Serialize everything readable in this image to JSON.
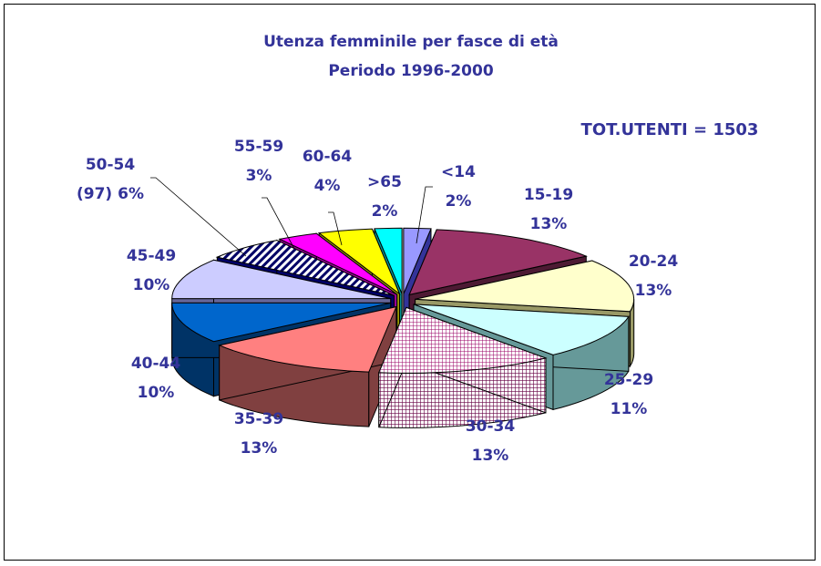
{
  "chart_data": {
    "type": "pie",
    "title": "Utenza femminile per fasce di età",
    "subtitle": "Periodo 1996-2000",
    "annotation": "TOT.UTENTI = 1503",
    "legend": "none",
    "slices": [
      {
        "label": "<14",
        "pct_label": "2%",
        "value": 2,
        "color": "#9999ff"
      },
      {
        "label": "15-19",
        "pct_label": "13%",
        "value": 13,
        "color": "#993366"
      },
      {
        "label": "20-24",
        "pct_label": "13%",
        "value": 13,
        "color": "#ffffcc"
      },
      {
        "label": "25-29",
        "pct_label": "11%",
        "value": 11,
        "color": "#ccffff"
      },
      {
        "label": "30-34",
        "pct_label": "13%",
        "value": 13,
        "color": "#cc99cc"
      },
      {
        "label": "35-39",
        "pct_label": "13%",
        "value": 13,
        "color": "#ff8080"
      },
      {
        "label": "40-44",
        "pct_label": "10%",
        "value": 10,
        "color": "#0066cc"
      },
      {
        "label": "45-49",
        "pct_label": "10%",
        "value": 10,
        "color": "#ccccff"
      },
      {
        "label": "50-54",
        "pct_label": "(97) 6%",
        "value": 6,
        "color": "#ffffff"
      },
      {
        "label": "55-59",
        "pct_label": "3%",
        "value": 3,
        "color": "#ff00ff"
      },
      {
        "label": "60-64",
        "pct_label": "4%",
        "value": 4,
        "color": "#ffff00"
      },
      {
        "label": ">65",
        "pct_label": "2%",
        "value": 2,
        "color": "#00ffff"
      }
    ]
  }
}
